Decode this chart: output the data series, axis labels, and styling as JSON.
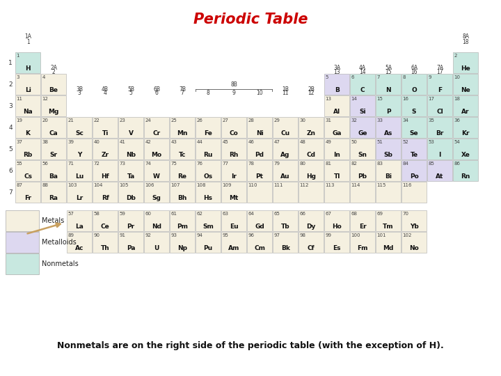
{
  "title": "Periodic Table",
  "subtitle": "Nonmetals are on the right side of the periodic table (with the exception of H).",
  "bg_color": "#ffffff",
  "metal_color": "#f5f0e0",
  "metalloid_color": "#ddd8f0",
  "nonmetal_color": "#c8e8e0",
  "default_color": "#e8e8e8",
  "border_color": "#aaaaaa",
  "title_color": "#cc0000",
  "elements": [
    {
      "sym": "H",
      "num": 1,
      "row": 1,
      "col": 1,
      "type": "nonmetal"
    },
    {
      "sym": "He",
      "num": 2,
      "row": 1,
      "col": 18,
      "type": "nonmetal"
    },
    {
      "sym": "Li",
      "num": 3,
      "row": 2,
      "col": 1,
      "type": "metal"
    },
    {
      "sym": "Be",
      "num": 4,
      "row": 2,
      "col": 2,
      "type": "metal"
    },
    {
      "sym": "B",
      "num": 5,
      "row": 2,
      "col": 13,
      "type": "metalloid"
    },
    {
      "sym": "C",
      "num": 6,
      "row": 2,
      "col": 14,
      "type": "nonmetal"
    },
    {
      "sym": "N",
      "num": 7,
      "row": 2,
      "col": 15,
      "type": "nonmetal"
    },
    {
      "sym": "O",
      "num": 8,
      "row": 2,
      "col": 16,
      "type": "nonmetal"
    },
    {
      "sym": "F",
      "num": 9,
      "row": 2,
      "col": 17,
      "type": "nonmetal"
    },
    {
      "sym": "Ne",
      "num": 10,
      "row": 2,
      "col": 18,
      "type": "nonmetal"
    },
    {
      "sym": "Na",
      "num": 11,
      "row": 3,
      "col": 1,
      "type": "metal"
    },
    {
      "sym": "Mg",
      "num": 12,
      "row": 3,
      "col": 2,
      "type": "metal"
    },
    {
      "sym": "Al",
      "num": 13,
      "row": 3,
      "col": 13,
      "type": "metal"
    },
    {
      "sym": "Si",
      "num": 14,
      "row": 3,
      "col": 14,
      "type": "metalloid"
    },
    {
      "sym": "P",
      "num": 15,
      "row": 3,
      "col": 15,
      "type": "nonmetal"
    },
    {
      "sym": "S",
      "num": 16,
      "row": 3,
      "col": 16,
      "type": "nonmetal"
    },
    {
      "sym": "Cl",
      "num": 17,
      "row": 3,
      "col": 17,
      "type": "nonmetal"
    },
    {
      "sym": "Ar",
      "num": 18,
      "row": 3,
      "col": 18,
      "type": "nonmetal"
    },
    {
      "sym": "K",
      "num": 19,
      "row": 4,
      "col": 1,
      "type": "metal"
    },
    {
      "sym": "Ca",
      "num": 20,
      "row": 4,
      "col": 2,
      "type": "metal"
    },
    {
      "sym": "Sc",
      "num": 21,
      "row": 4,
      "col": 3,
      "type": "metal"
    },
    {
      "sym": "Ti",
      "num": 22,
      "row": 4,
      "col": 4,
      "type": "metal"
    },
    {
      "sym": "V",
      "num": 23,
      "row": 4,
      "col": 5,
      "type": "metal"
    },
    {
      "sym": "Cr",
      "num": 24,
      "row": 4,
      "col": 6,
      "type": "metal"
    },
    {
      "sym": "Mn",
      "num": 25,
      "row": 4,
      "col": 7,
      "type": "metal"
    },
    {
      "sym": "Fe",
      "num": 26,
      "row": 4,
      "col": 8,
      "type": "metal"
    },
    {
      "sym": "Co",
      "num": 27,
      "row": 4,
      "col": 9,
      "type": "metal"
    },
    {
      "sym": "Ni",
      "num": 28,
      "row": 4,
      "col": 10,
      "type": "metal"
    },
    {
      "sym": "Cu",
      "num": 29,
      "row": 4,
      "col": 11,
      "type": "metal"
    },
    {
      "sym": "Zn",
      "num": 30,
      "row": 4,
      "col": 12,
      "type": "metal"
    },
    {
      "sym": "Ga",
      "num": 31,
      "row": 4,
      "col": 13,
      "type": "metal"
    },
    {
      "sym": "Ge",
      "num": 32,
      "row": 4,
      "col": 14,
      "type": "metalloid"
    },
    {
      "sym": "As",
      "num": 33,
      "row": 4,
      "col": 15,
      "type": "metalloid"
    },
    {
      "sym": "Se",
      "num": 34,
      "row": 4,
      "col": 16,
      "type": "nonmetal"
    },
    {
      "sym": "Br",
      "num": 35,
      "row": 4,
      "col": 17,
      "type": "nonmetal"
    },
    {
      "sym": "Kr",
      "num": 36,
      "row": 4,
      "col": 18,
      "type": "nonmetal"
    },
    {
      "sym": "Rb",
      "num": 37,
      "row": 5,
      "col": 1,
      "type": "metal"
    },
    {
      "sym": "Sr",
      "num": 38,
      "row": 5,
      "col": 2,
      "type": "metal"
    },
    {
      "sym": "Y",
      "num": 39,
      "row": 5,
      "col": 3,
      "type": "metal"
    },
    {
      "sym": "Zr",
      "num": 40,
      "row": 5,
      "col": 4,
      "type": "metal"
    },
    {
      "sym": "Nb",
      "num": 41,
      "row": 5,
      "col": 5,
      "type": "metal"
    },
    {
      "sym": "Mo",
      "num": 42,
      "row": 5,
      "col": 6,
      "type": "metal"
    },
    {
      "sym": "Tc",
      "num": 43,
      "row": 5,
      "col": 7,
      "type": "metal"
    },
    {
      "sym": "Ru",
      "num": 44,
      "row": 5,
      "col": 8,
      "type": "metal"
    },
    {
      "sym": "Rh",
      "num": 45,
      "row": 5,
      "col": 9,
      "type": "metal"
    },
    {
      "sym": "Pd",
      "num": 46,
      "row": 5,
      "col": 10,
      "type": "metal"
    },
    {
      "sym": "Ag",
      "num": 47,
      "row": 5,
      "col": 11,
      "type": "metal"
    },
    {
      "sym": "Cd",
      "num": 48,
      "row": 5,
      "col": 12,
      "type": "metal"
    },
    {
      "sym": "In",
      "num": 49,
      "row": 5,
      "col": 13,
      "type": "metal"
    },
    {
      "sym": "Sn",
      "num": 50,
      "row": 5,
      "col": 14,
      "type": "metal"
    },
    {
      "sym": "Sb",
      "num": 51,
      "row": 5,
      "col": 15,
      "type": "metalloid"
    },
    {
      "sym": "Te",
      "num": 52,
      "row": 5,
      "col": 16,
      "type": "metalloid"
    },
    {
      "sym": "I",
      "num": 53,
      "row": 5,
      "col": 17,
      "type": "nonmetal"
    },
    {
      "sym": "Xe",
      "num": 54,
      "row": 5,
      "col": 18,
      "type": "nonmetal"
    },
    {
      "sym": "Cs",
      "num": 55,
      "row": 6,
      "col": 1,
      "type": "metal"
    },
    {
      "sym": "Ba",
      "num": 56,
      "row": 6,
      "col": 2,
      "type": "metal"
    },
    {
      "sym": "Lu",
      "num": 71,
      "row": 6,
      "col": 3,
      "type": "metal"
    },
    {
      "sym": "Hf",
      "num": 72,
      "row": 6,
      "col": 4,
      "type": "metal"
    },
    {
      "sym": "Ta",
      "num": 73,
      "row": 6,
      "col": 5,
      "type": "metal"
    },
    {
      "sym": "W",
      "num": 74,
      "row": 6,
      "col": 6,
      "type": "metal"
    },
    {
      "sym": "Re",
      "num": 75,
      "row": 6,
      "col": 7,
      "type": "metal"
    },
    {
      "sym": "Os",
      "num": 76,
      "row": 6,
      "col": 8,
      "type": "metal"
    },
    {
      "sym": "Ir",
      "num": 77,
      "row": 6,
      "col": 9,
      "type": "metal"
    },
    {
      "sym": "Pt",
      "num": 78,
      "row": 6,
      "col": 10,
      "type": "metal"
    },
    {
      "sym": "Au",
      "num": 79,
      "row": 6,
      "col": 11,
      "type": "metal"
    },
    {
      "sym": "Hg",
      "num": 80,
      "row": 6,
      "col": 12,
      "type": "metal"
    },
    {
      "sym": "Tl",
      "num": 81,
      "row": 6,
      "col": 13,
      "type": "metal"
    },
    {
      "sym": "Pb",
      "num": 82,
      "row": 6,
      "col": 14,
      "type": "metal"
    },
    {
      "sym": "Bi",
      "num": 83,
      "row": 6,
      "col": 15,
      "type": "metal"
    },
    {
      "sym": "Po",
      "num": 84,
      "row": 6,
      "col": 16,
      "type": "metalloid"
    },
    {
      "sym": "At",
      "num": 85,
      "row": 6,
      "col": 17,
      "type": "metalloid"
    },
    {
      "sym": "Rn",
      "num": 86,
      "row": 6,
      "col": 18,
      "type": "nonmetal"
    },
    {
      "sym": "Fr",
      "num": 87,
      "row": 7,
      "col": 1,
      "type": "metal"
    },
    {
      "sym": "Ra",
      "num": 88,
      "row": 7,
      "col": 2,
      "type": "metal"
    },
    {
      "sym": "Lr",
      "num": 103,
      "row": 7,
      "col": 3,
      "type": "metal"
    },
    {
      "sym": "Rf",
      "num": 104,
      "row": 7,
      "col": 4,
      "type": "metal"
    },
    {
      "sym": "Db",
      "num": 105,
      "row": 7,
      "col": 5,
      "type": "metal"
    },
    {
      "sym": "Sg",
      "num": 106,
      "row": 7,
      "col": 6,
      "type": "metal"
    },
    {
      "sym": "Bh",
      "num": 107,
      "row": 7,
      "col": 7,
      "type": "metal"
    },
    {
      "sym": "Hs",
      "num": 108,
      "row": 7,
      "col": 8,
      "type": "metal"
    },
    {
      "sym": "Mt",
      "num": 109,
      "row": 7,
      "col": 9,
      "type": "metal"
    },
    {
      "sym": "",
      "num": 110,
      "row": 7,
      "col": 10,
      "type": "metal"
    },
    {
      "sym": "",
      "num": 111,
      "row": 7,
      "col": 11,
      "type": "metal"
    },
    {
      "sym": "",
      "num": 112,
      "row": 7,
      "col": 12,
      "type": "metal"
    },
    {
      "sym": "",
      "num": 113,
      "row": 7,
      "col": 13,
      "type": "metal"
    },
    {
      "sym": "",
      "num": 114,
      "row": 7,
      "col": 14,
      "type": "metal"
    },
    {
      "sym": "",
      "num": 115,
      "row": 7,
      "col": 15,
      "type": "metal"
    },
    {
      "sym": "",
      "num": 116,
      "row": 7,
      "col": 16,
      "type": "metal"
    }
  ],
  "lanthanides": [
    {
      "sym": "La",
      "num": 57
    },
    {
      "sym": "Ce",
      "num": 58
    },
    {
      "sym": "Pr",
      "num": 59
    },
    {
      "sym": "Nd",
      "num": 60
    },
    {
      "sym": "Pm",
      "num": 61
    },
    {
      "sym": "Sm",
      "num": 62
    },
    {
      "sym": "Eu",
      "num": 63
    },
    {
      "sym": "Gd",
      "num": 64
    },
    {
      "sym": "Tb",
      "num": 65
    },
    {
      "sym": "Dy",
      "num": 66
    },
    {
      "sym": "Ho",
      "num": 67
    },
    {
      "sym": "Er",
      "num": 68
    },
    {
      "sym": "Tm",
      "num": 69
    },
    {
      "sym": "Yb",
      "num": 70
    }
  ],
  "actinides": [
    {
      "sym": "Ac",
      "num": 89
    },
    {
      "sym": "Th",
      "num": 90
    },
    {
      "sym": "Pa",
      "num": 91
    },
    {
      "sym": "U",
      "num": 92
    },
    {
      "sym": "Np",
      "num": 93
    },
    {
      "sym": "Pu",
      "num": 94
    },
    {
      "sym": "Am",
      "num": 95
    },
    {
      "sym": "Cm",
      "num": 96
    },
    {
      "sym": "Bk",
      "num": 97
    },
    {
      "sym": "Cf",
      "num": 98
    },
    {
      "sym": "Es",
      "num": 99
    },
    {
      "sym": "Fm",
      "num": 100
    },
    {
      "sym": "Md",
      "num": 101
    },
    {
      "sym": "No",
      "num": 102
    }
  ]
}
